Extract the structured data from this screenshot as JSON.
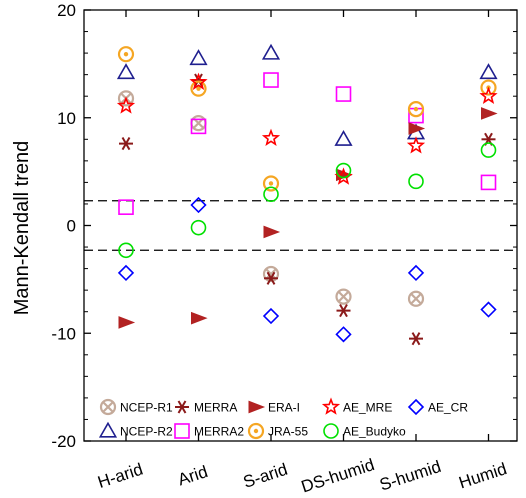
{
  "chart_data": {
    "type": "scatter",
    "ylabel": "Mann-Kendall trend",
    "categories": [
      "H-arid",
      "Arid",
      "S-arid",
      "DS-humid",
      "S-humid",
      "Humid"
    ],
    "ylim": [
      -20,
      20
    ],
    "yticks": [
      -20,
      -10,
      0,
      10,
      20
    ],
    "significance_lines": [
      2.3,
      -2.3
    ],
    "legend_position": "bottom-inside",
    "series": [
      {
        "name": "NCEP-R1",
        "marker": "circle-x",
        "color": "#c4aa9a",
        "values": [
          11.8,
          9.5,
          -4.5,
          -6.6,
          -6.8,
          null
        ]
      },
      {
        "name": "NCEP-R2",
        "marker": "triangle",
        "color": "#1f1f8f",
        "values": [
          14.2,
          15.5,
          16.0,
          8.0,
          8.6,
          14.2
        ]
      },
      {
        "name": "MERRA",
        "marker": "asterisk",
        "color": "#8b1a1a",
        "values": [
          7.6,
          13.5,
          -4.9,
          -7.9,
          -10.5,
          8.0
        ]
      },
      {
        "name": "MERRA2",
        "marker": "square",
        "color": "#ff00ff",
        "values": [
          1.7,
          9.2,
          13.5,
          12.2,
          10.2,
          4.0
        ]
      },
      {
        "name": "ERA-I",
        "marker": "arrow-right",
        "color": "#b22222",
        "values": [
          -9.0,
          -8.6,
          -0.6,
          4.7,
          9.0,
          10.4
        ]
      },
      {
        "name": "JRA-55",
        "marker": "circle-dot",
        "color": "#f5a623",
        "values": [
          15.9,
          12.7,
          3.9,
          null,
          10.8,
          12.8
        ]
      },
      {
        "name": "AE_MRE",
        "marker": "star",
        "color": "#ff0000",
        "values": [
          11.1,
          13.3,
          8.1,
          4.5,
          7.4,
          12.0
        ]
      },
      {
        "name": "AE_Budyko",
        "marker": "circle",
        "color": "#00e000",
        "values": [
          -2.3,
          -0.2,
          2.9,
          5.1,
          4.1,
          7.0
        ]
      },
      {
        "name": "AE_CR",
        "marker": "diamond",
        "color": "#0000ff",
        "values": [
          -4.4,
          1.9,
          -8.4,
          -10.1,
          -4.4,
          -7.8
        ]
      }
    ]
  }
}
